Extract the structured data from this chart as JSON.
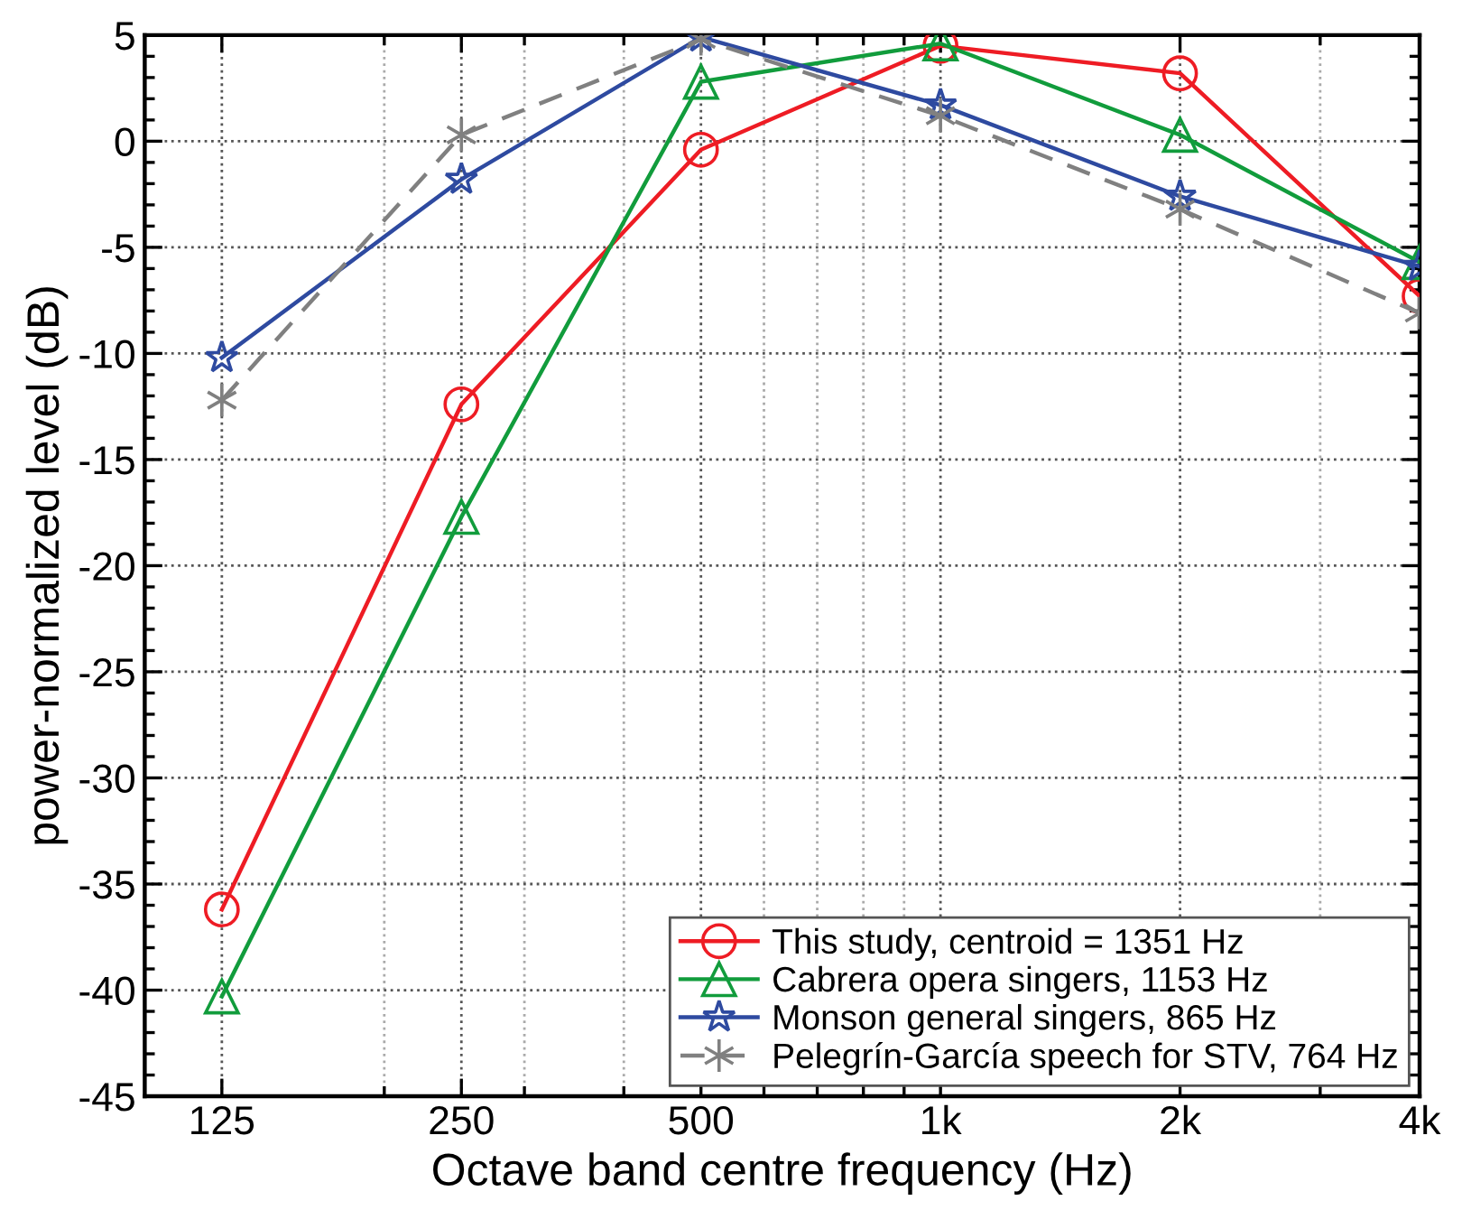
{
  "chart_data": {
    "type": "line",
    "xlabel": "Octave band centre frequency (Hz)",
    "ylabel": "power-normalized level (dB)",
    "x": [
      125,
      250,
      500,
      1000,
      2000,
      4000
    ],
    "log": "x",
    "xlim": [
      100,
      4000
    ],
    "xticks": [
      125,
      250,
      500,
      {
        "value": 1000,
        "label": "1k"
      },
      {
        "value": 2000,
        "label": "2k"
      },
      {
        "value": 4000,
        "label": "4k"
      }
    ],
    "ylim": [
      -45,
      5
    ],
    "yticks": [
      -45,
      -40,
      -35,
      -30,
      -25,
      -20,
      -15,
      -10,
      -5,
      0,
      5
    ],
    "grid": true,
    "legend": "bottom right",
    "series": [
      {
        "name": "This study, centroid = 1351 Hz",
        "color": "#ee1c24",
        "marker": "circle",
        "line_style": "solid",
        "values": [
          -36.2,
          -12.4,
          -0.4,
          4.5,
          3.2,
          -7.3
        ]
      },
      {
        "name": "Cabrera opera singers, 1153 Hz",
        "color": "#119c3c",
        "marker": "triangle",
        "line_style": "solid",
        "values": [
          -40.3,
          -17.7,
          2.8,
          4.6,
          0.3,
          -5.7
        ]
      },
      {
        "name": "Monson general singers, 865 Hz",
        "color": "#2e4aa0",
        "marker": "star",
        "line_style": "solid",
        "values": [
          -10.2,
          -1.8,
          4.9,
          1.7,
          -2.6,
          -5.9
        ]
      },
      {
        "name": "Pelegrín-García speech for STV, 764 Hz",
        "color": "#808080",
        "marker": "cross",
        "line_style": "dashed",
        "values": [
          -12.2,
          0.3,
          4.8,
          1.2,
          -3.2,
          -8.1
        ]
      }
    ]
  }
}
